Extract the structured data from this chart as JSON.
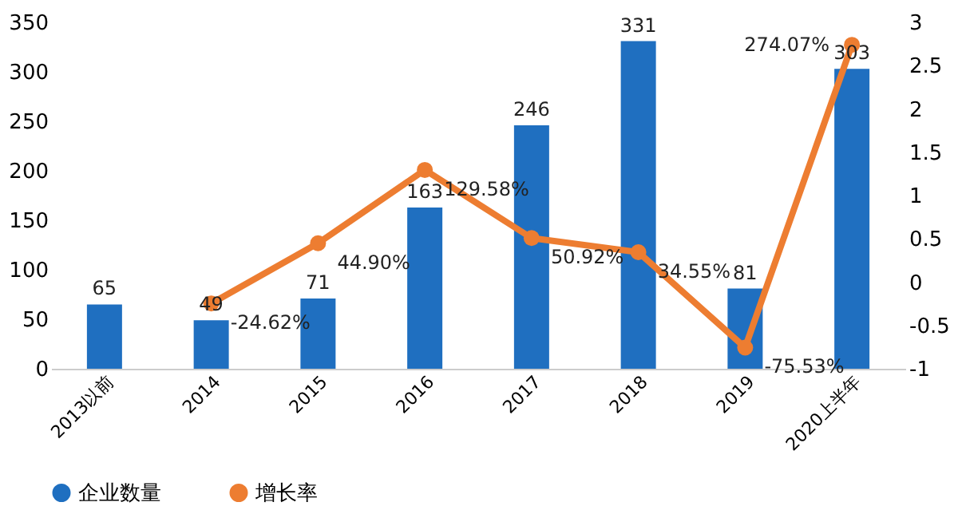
{
  "chart_data": {
    "type": "bar",
    "categories": [
      "2013以前",
      "2014",
      "2015",
      "2016",
      "2017",
      "2018",
      "2019",
      "2020上半年"
    ],
    "series": [
      {
        "name": "企业数量",
        "color": "#1f6fc0",
        "values": [
          65,
          49,
          71,
          163,
          246,
          331,
          81,
          303
        ],
        "value_labels": [
          "65",
          "49",
          "71",
          "163",
          "246",
          "331",
          "81",
          "303"
        ]
      },
      {
        "name": "增长率",
        "type": "line",
        "axis": "y2",
        "color": "#ed7d31",
        "values": [
          null,
          -0.2462,
          0.449,
          1.2958,
          0.5092,
          0.3455,
          -0.7553,
          2.7407
        ],
        "value_labels": [
          null,
          "-24.62%",
          "44.90%",
          "129.58%",
          "50.92%",
          "34.55%",
          "-75.53%",
          "274.07%"
        ]
      }
    ],
    "ylim": [
      0,
      350
    ],
    "yticks": [
      0,
      50,
      100,
      150,
      200,
      250,
      300,
      350
    ],
    "y2lim": [
      -1,
      3
    ],
    "y2ticks": [
      -1,
      -0.5,
      0,
      0.5,
      1,
      1.5,
      2,
      2.5,
      3
    ],
    "marker": "circle",
    "legend": "bottom",
    "grid": false
  }
}
